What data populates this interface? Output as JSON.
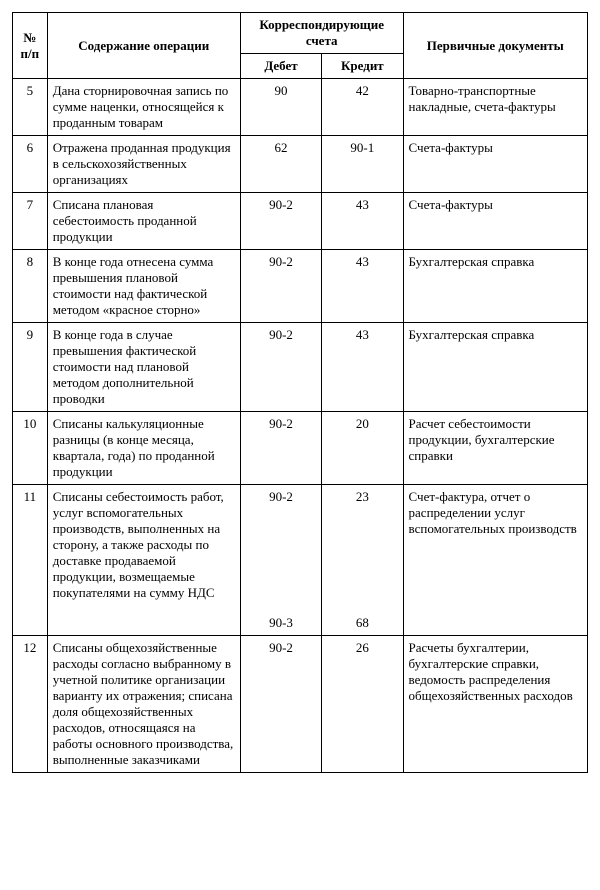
{
  "table": {
    "headers": {
      "num": "№ п/п",
      "description": "Содержание операции",
      "accounts_group": "Корреспондирующие счета",
      "debit": "Дебет",
      "credit": "Кредит",
      "documents": "Первичные документы"
    },
    "col_widths": {
      "num": 32,
      "desc": 178,
      "debit": 75,
      "credit": 75,
      "docs": 170
    },
    "font_size_pt": 13,
    "border_color": "#000000",
    "background_color": "#ffffff",
    "rows": [
      {
        "num": "5",
        "description": "Дана сторнировочная запись по сумме наценки, относящейся к проданным товарам",
        "debit": "90",
        "credit": "42",
        "documents": "Товарно-транспортные накладные, счета-фактуры"
      },
      {
        "num": "6",
        "description": "Отражена проданная продукция в сельскохозяйственных организациях",
        "debit": "62",
        "credit": "90-1",
        "documents": "Счета-фактуры"
      },
      {
        "num": "7",
        "description": "Списана плановая себестоимость проданной продукции",
        "debit": "90-2",
        "credit": "43",
        "documents": "Счета-фактуры"
      },
      {
        "num": "8",
        "description": "В конце года отнесена сумма превышения плановой стоимости над фактической методом «красное сторно»",
        "debit": "90-2",
        "credit": "43",
        "documents": "Бухгалтерская справка"
      },
      {
        "num": "9",
        "description": "В конце года в случае превышения фактической стоимости над плановой методом дополнительной проводки",
        "debit": "90-2",
        "credit": "43",
        "documents": "Бухгалтерская справка"
      },
      {
        "num": "10",
        "description": "Списаны калькуляционные разницы (в конце месяца, квартала, года) по проданной продукции",
        "debit": "90-2",
        "credit": "20",
        "documents": "Расчет себестоимости продукции, бухгалтерские справки"
      },
      {
        "num": "11",
        "description": "Списаны себестоимость работ, услуг вспомогательных производств, выполненных на сторону, а также расходы по доставке продаваемой продукции, возмещаемые покупателями на сумму НДС",
        "debit": "90-2",
        "credit": "23",
        "documents": "Счет-фактура, отчет о распределении услуг вспомогательных производств",
        "debit2": "90-3",
        "credit2": "68"
      },
      {
        "num": "12",
        "description": "Списаны общехозяйственные расходы согласно выбранному в учетной политике организации варианту их отражения; списана доля общехозяйственных расходов, относящаяся на работы основного производства, выполненные заказчиками",
        "debit": "90-2",
        "credit": "26",
        "documents": "Расчеты бухгалтерии, бухгалтерские справки, ведомость распределения общехозяйственных расходов"
      }
    ]
  }
}
